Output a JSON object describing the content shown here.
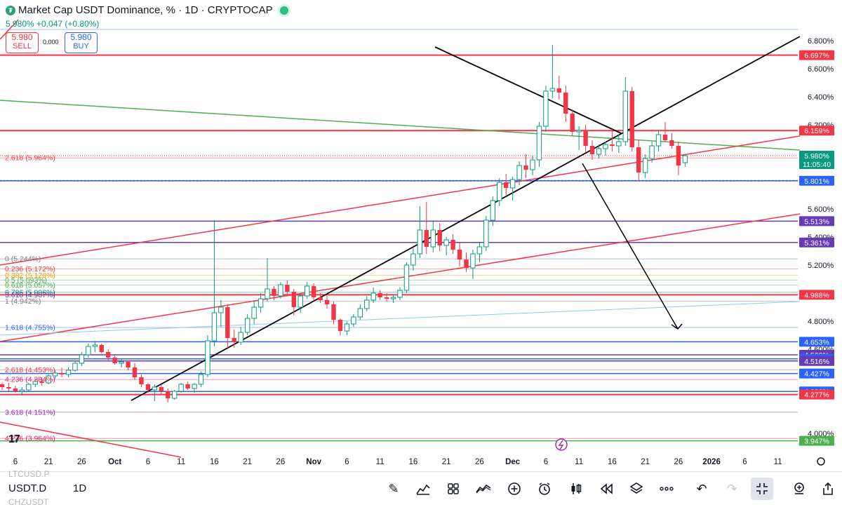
{
  "header": {
    "title": "Market Cap USDT Dominance, % · 1D · CRYPTOCAP",
    "change": "5.980% +0.047 (+0.80%)",
    "sell_price": "5.980",
    "sell_label": "SELL",
    "buy_price": "5.980",
    "buy_label": "BUY",
    "spread": "0.000"
  },
  "bottom": {
    "symbol": "USDT.D",
    "timeframe": "1D",
    "ghost_above": "LTCUSD.P",
    "ghost_below": "CHZUSDT",
    "tools": [
      "pencil-icon",
      "indicators-icon",
      "layout-grid-icon",
      "compare-icon",
      "add-icon",
      "alert-clock-icon",
      "candles-icon",
      "replay-icon",
      "layers-icon",
      "more-icon",
      "undo-icon",
      "redo-icon",
      "fullscreen-exit-icon",
      "add-alert-icon",
      "share-icon"
    ]
  },
  "chart_data": {
    "type": "candlestick",
    "y_axis": {
      "min": 3.9,
      "max": 6.9,
      "scale": "linear"
    },
    "y_ticks": [
      "6.800%",
      "6.600%",
      "6.400%",
      "6.200%",
      "5.600%",
      "5.400%",
      "5.200%",
      "4.800%",
      "4.600%",
      "4.000%"
    ],
    "x_ticks": [
      "6",
      "21",
      "26",
      "Oct",
      "6",
      "11",
      "16",
      "21",
      "26",
      "Nov",
      "6",
      "11",
      "16",
      "21",
      "26",
      "Dec",
      "6",
      "11",
      "16",
      "21",
      "26",
      "2026",
      "6",
      "11"
    ],
    "x_tick_values": [
      2,
      7,
      12,
      17,
      22,
      27,
      32,
      37,
      42,
      47,
      52,
      57,
      62,
      67,
      72,
      77,
      82,
      87,
      92,
      97,
      102,
      107,
      112,
      117
    ],
    "current_price": {
      "value": 5.98,
      "label": "5.980%",
      "countdown": "11:05:40"
    },
    "price_labels": [
      {
        "value": 6.697,
        "label": "6.697%",
        "color": "#f23645"
      },
      {
        "value": 6.159,
        "label": "6.159%",
        "color": "#f23645"
      },
      {
        "value": 5.801,
        "label": "5.801%",
        "color": "#2962ff"
      },
      {
        "value": 5.513,
        "label": "5.513%",
        "color": "#673ab7"
      },
      {
        "value": 5.361,
        "label": "5.361%",
        "color": "#673ab7"
      },
      {
        "value": 4.988,
        "label": "4.988%",
        "color": "#f23645"
      },
      {
        "value": 4.653,
        "label": "4.653%",
        "color": "#2962ff"
      },
      {
        "value": 4.56,
        "label": "4.560%",
        "color": "#673ab7"
      },
      {
        "value": 4.531,
        "label": "4.531%",
        "color": "#2962ff"
      },
      {
        "value": 4.516,
        "label": "4.516%",
        "color": "#673ab7"
      },
      {
        "value": 4.427,
        "label": "4.427%",
        "color": "#2962ff"
      },
      {
        "value": 4.299,
        "label": "4.299%",
        "color": "#2962ff"
      },
      {
        "value": 4.277,
        "label": "4.277%",
        "color": "#f23645"
      },
      {
        "value": 3.947,
        "label": "3.947%",
        "color": "#4caf50"
      }
    ],
    "fib_labels": [
      {
        "label": "2.618 (5.964%)",
        "value": 5.964,
        "color": "#f23645"
      },
      {
        "label": "0 (5.244%)",
        "value": 5.244,
        "color": "#787b86"
      },
      {
        "label": "0.236 (5.172%)",
        "value": 5.172,
        "color": "#f23645"
      },
      {
        "label": "0.382 (5.128%)",
        "value": 5.128,
        "color": "#ff9800"
      },
      {
        "label": "0.5 (5.093%)",
        "value": 5.093,
        "color": "#4caf50"
      },
      {
        "label": "0.618 (5.057%)",
        "value": 5.057,
        "color": "#4caf50"
      },
      {
        "label": "0.786 (5.006%)",
        "value": 5.006,
        "color": "#00897b"
      },
      {
        "label": "3.618 (4.987%)",
        "value": 4.987,
        "color": "#673ab7"
      },
      {
        "label": "1 (4.942%)",
        "value": 4.942,
        "color": "#787b86"
      },
      {
        "label": "1.618 (4.755%)",
        "value": 4.755,
        "color": "#2962ff"
      },
      {
        "label": "2.618 (4.453%)",
        "value": 4.453,
        "color": "#f23645"
      },
      {
        "label": "4.236 (4.384%)",
        "value": 4.384,
        "color": "#e91e63"
      },
      {
        "label": "3.618 (4.151%)",
        "value": 4.151,
        "color": "#9c27b0"
      },
      {
        "label": "4.236 (3.964%)",
        "value": 3.964,
        "color": "#e91e63"
      }
    ],
    "colors": {
      "up": "#089981",
      "down": "#f23645",
      "trend": "#000000",
      "channel": "#f23645",
      "green_line": "#4caf50"
    },
    "candles": [
      [
        0,
        4.35,
        4.36,
        4.31,
        4.33
      ],
      [
        1,
        4.33,
        4.36,
        4.3,
        4.32
      ],
      [
        2,
        4.32,
        4.34,
        4.29,
        4.3
      ],
      [
        3,
        4.3,
        4.33,
        4.27,
        4.31
      ],
      [
        4,
        4.31,
        4.36,
        4.3,
        4.35
      ],
      [
        5,
        4.35,
        4.39,
        4.33,
        4.37
      ],
      [
        6,
        4.37,
        4.4,
        4.34,
        4.36
      ],
      [
        7,
        4.36,
        4.42,
        4.35,
        4.41
      ],
      [
        8,
        4.41,
        4.45,
        4.39,
        4.43
      ],
      [
        9,
        4.43,
        4.47,
        4.4,
        4.42
      ],
      [
        10,
        4.42,
        4.47,
        4.4,
        4.45
      ],
      [
        11,
        4.45,
        4.52,
        4.44,
        4.5
      ],
      [
        12,
        4.5,
        4.58,
        4.48,
        4.56
      ],
      [
        13,
        4.56,
        4.64,
        4.54,
        4.62
      ],
      [
        14,
        4.62,
        4.66,
        4.58,
        4.63
      ],
      [
        15,
        4.63,
        4.64,
        4.57,
        4.58
      ],
      [
        16,
        4.58,
        4.6,
        4.52,
        4.54
      ],
      [
        17,
        4.54,
        4.56,
        4.49,
        4.5
      ],
      [
        18,
        4.5,
        4.53,
        4.47,
        4.51
      ],
      [
        19,
        4.51,
        4.52,
        4.45,
        4.47
      ],
      [
        20,
        4.47,
        4.5,
        4.38,
        4.4
      ],
      [
        21,
        4.4,
        4.42,
        4.33,
        4.35
      ],
      [
        22,
        4.35,
        4.36,
        4.29,
        4.31
      ],
      [
        23,
        4.31,
        4.35,
        4.23,
        4.33
      ],
      [
        24,
        4.33,
        4.35,
        4.28,
        4.3
      ],
      [
        25,
        4.3,
        4.32,
        4.22,
        4.25
      ],
      [
        26,
        4.25,
        4.31,
        4.24,
        4.3
      ],
      [
        27,
        4.3,
        4.36,
        4.29,
        4.35
      ],
      [
        28,
        4.35,
        4.37,
        4.31,
        4.32
      ],
      [
        29,
        4.32,
        4.36,
        4.29,
        4.35
      ],
      [
        30,
        4.35,
        4.44,
        4.33,
        4.42
      ],
      [
        31,
        4.42,
        4.7,
        4.4,
        4.66
      ],
      [
        32,
        4.66,
        5.52,
        4.62,
        4.86
      ],
      [
        33,
        4.86,
        4.95,
        4.76,
        4.9
      ],
      [
        34,
        4.9,
        4.92,
        4.6,
        4.68
      ],
      [
        35,
        4.68,
        4.74,
        4.61,
        4.65
      ],
      [
        36,
        4.65,
        4.76,
        4.63,
        4.72
      ],
      [
        37,
        4.72,
        4.85,
        4.7,
        4.82
      ],
      [
        38,
        4.82,
        4.95,
        4.78,
        4.9
      ],
      [
        39,
        4.9,
        5.0,
        4.86,
        4.96
      ],
      [
        40,
        4.96,
        5.25,
        4.94,
        5.03
      ],
      [
        41,
        5.03,
        5.05,
        4.95,
        4.98
      ],
      [
        42,
        4.98,
        5.08,
        4.96,
        5.06
      ],
      [
        43,
        5.06,
        5.09,
        4.98,
        5.01
      ],
      [
        44,
        5.01,
        5.03,
        4.84,
        4.9
      ],
      [
        45,
        4.9,
        5.0,
        4.86,
        4.98
      ],
      [
        46,
        4.98,
        5.08,
        4.96,
        5.05
      ],
      [
        47,
        5.05,
        5.07,
        4.95,
        4.97
      ],
      [
        48,
        4.97,
        5.0,
        4.93,
        4.95
      ],
      [
        49,
        4.95,
        4.98,
        4.89,
        4.92
      ],
      [
        50,
        4.92,
        4.94,
        4.78,
        4.81
      ],
      [
        51,
        4.81,
        4.82,
        4.7,
        4.73
      ],
      [
        52,
        4.73,
        4.8,
        4.7,
        4.78
      ],
      [
        53,
        4.78,
        4.85,
        4.76,
        4.83
      ],
      [
        54,
        4.83,
        4.92,
        4.81,
        4.89
      ],
      [
        55,
        4.89,
        4.98,
        4.87,
        4.95
      ],
      [
        56,
        4.95,
        5.04,
        4.93,
        5.0
      ],
      [
        57,
        5.0,
        5.02,
        4.95,
        4.97
      ],
      [
        58,
        4.97,
        5.0,
        4.94,
        4.96
      ],
      [
        59,
        4.96,
        4.99,
        4.93,
        4.97
      ],
      [
        60,
        4.97,
        5.04,
        4.95,
        5.02
      ],
      [
        61,
        5.02,
        5.22,
        5.0,
        5.2
      ],
      [
        62,
        5.2,
        5.32,
        5.16,
        5.28
      ],
      [
        63,
        5.28,
        5.62,
        5.25,
        5.45
      ],
      [
        64,
        5.45,
        5.65,
        5.28,
        5.33
      ],
      [
        65,
        5.33,
        5.52,
        5.29,
        5.45
      ],
      [
        66,
        5.45,
        5.5,
        5.3,
        5.34
      ],
      [
        67,
        5.34,
        5.4,
        5.27,
        5.38
      ],
      [
        68,
        5.38,
        5.42,
        5.28,
        5.31
      ],
      [
        69,
        5.31,
        5.36,
        5.19,
        5.24
      ],
      [
        70,
        5.24,
        5.29,
        5.15,
        5.18
      ],
      [
        71,
        5.18,
        5.31,
        5.1,
        5.28
      ],
      [
        72,
        5.28,
        5.36,
        5.22,
        5.33
      ],
      [
        73,
        5.33,
        5.55,
        5.3,
        5.52
      ],
      [
        74,
        5.52,
        5.69,
        5.48,
        5.66
      ],
      [
        75,
        5.66,
        5.82,
        5.62,
        5.79
      ],
      [
        76,
        5.79,
        5.85,
        5.7,
        5.75
      ],
      [
        77,
        5.75,
        5.83,
        5.66,
        5.81
      ],
      [
        78,
        5.81,
        5.94,
        5.77,
        5.91
      ],
      [
        79,
        5.91,
        5.99,
        5.82,
        5.88
      ],
      [
        80,
        5.88,
        5.98,
        5.84,
        5.95
      ],
      [
        81,
        5.95,
        6.22,
        5.9,
        6.19
      ],
      [
        82,
        6.19,
        6.48,
        6.15,
        6.44
      ],
      [
        83,
        6.44,
        6.77,
        6.39,
        6.46
      ],
      [
        84,
        6.46,
        6.55,
        6.38,
        6.43
      ],
      [
        85,
        6.43,
        6.48,
        6.22,
        6.28
      ],
      [
        86,
        6.28,
        6.31,
        6.12,
        6.15
      ],
      [
        87,
        6.15,
        6.19,
        6.02,
        6.16
      ],
      [
        88,
        6.16,
        6.2,
        6.0,
        6.05
      ],
      [
        89,
        6.05,
        6.09,
        5.95,
        5.99
      ],
      [
        90,
        5.99,
        6.06,
        5.96,
        6.03
      ],
      [
        91,
        6.03,
        6.08,
        5.98,
        6.06
      ],
      [
        92,
        6.06,
        6.17,
        6.01,
        6.05
      ],
      [
        93,
        6.05,
        6.13,
        6.0,
        6.08
      ],
      [
        94,
        6.08,
        6.54,
        6.05,
        6.44
      ],
      [
        95,
        6.44,
        6.47,
        6.01,
        6.04
      ],
      [
        96,
        6.04,
        6.09,
        5.8,
        5.86
      ],
      [
        97,
        5.86,
        5.99,
        5.82,
        5.96
      ],
      [
        98,
        5.96,
        6.08,
        5.93,
        6.05
      ],
      [
        99,
        6.05,
        6.16,
        6.01,
        6.13
      ],
      [
        100,
        6.13,
        6.22,
        6.08,
        6.09
      ],
      [
        101,
        6.09,
        6.14,
        6.03,
        6.05
      ],
      [
        102,
        6.05,
        6.08,
        5.84,
        5.91
      ],
      [
        103,
        5.93,
        5.99,
        5.9,
        5.98
      ]
    ]
  }
}
